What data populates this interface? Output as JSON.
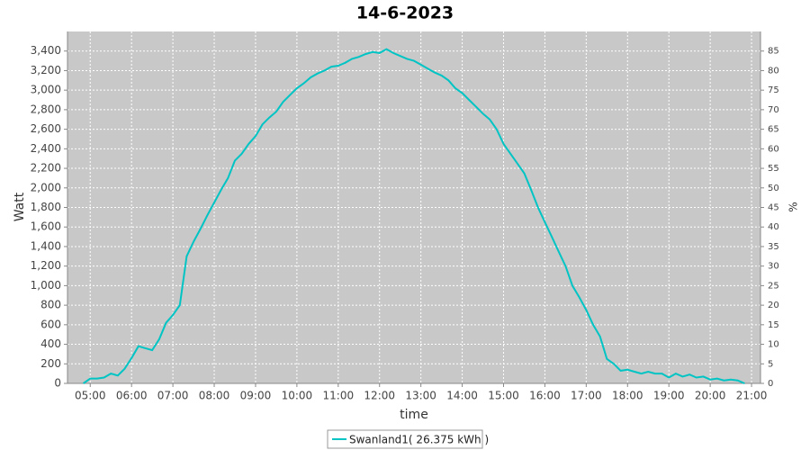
{
  "chart_data": {
    "type": "line",
    "title": "14-6-2023",
    "x_label": "time",
    "y_label": "Watt",
    "y2_label": "%",
    "series": [
      {
        "name": "Swanland1( 26.375 kWh )",
        "color": "#00c4c4",
        "x": [
          "04:50",
          "05:00",
          "05:10",
          "05:20",
          "05:30",
          "05:40",
          "05:50",
          "06:00",
          "06:10",
          "06:20",
          "06:30",
          "06:40",
          "06:50",
          "07:00",
          "07:10",
          "07:20",
          "07:30",
          "07:40",
          "07:50",
          "08:00",
          "08:10",
          "08:20",
          "08:30",
          "08:40",
          "08:50",
          "09:00",
          "09:10",
          "09:20",
          "09:30",
          "09:40",
          "09:50",
          "10:00",
          "10:10",
          "10:20",
          "10:30",
          "10:40",
          "10:50",
          "11:00",
          "11:10",
          "11:20",
          "11:30",
          "11:40",
          "11:50",
          "12:00",
          "12:10",
          "12:20",
          "12:30",
          "12:40",
          "12:50",
          "13:00",
          "13:10",
          "13:20",
          "13:30",
          "13:40",
          "13:50",
          "14:00",
          "14:10",
          "14:20",
          "14:30",
          "14:40",
          "14:50",
          "15:00",
          "15:10",
          "15:20",
          "15:30",
          "15:40",
          "15:50",
          "16:00",
          "16:10",
          "16:20",
          "16:30",
          "16:40",
          "16:50",
          "17:00",
          "17:10",
          "17:20",
          "17:30",
          "17:40",
          "17:50",
          "18:00",
          "18:10",
          "18:20",
          "18:30",
          "18:40",
          "18:50",
          "19:00",
          "19:10",
          "19:20",
          "19:30",
          "19:40",
          "19:50",
          "20:00",
          "20:10",
          "20:20",
          "20:30",
          "20:40",
          "20:50"
        ],
        "values": [
          0,
          50,
          50,
          60,
          100,
          80,
          150,
          260,
          380,
          360,
          340,
          450,
          620,
          700,
          800,
          1300,
          1450,
          1580,
          1720,
          1850,
          1980,
          2100,
          2280,
          2350,
          2450,
          2530,
          2650,
          2720,
          2780,
          2880,
          2950,
          3020,
          3070,
          3130,
          3170,
          3200,
          3240,
          3250,
          3280,
          3320,
          3340,
          3370,
          3390,
          3380,
          3420,
          3380,
          3350,
          3320,
          3300,
          3260,
          3220,
          3180,
          3150,
          3100,
          3020,
          2970,
          2900,
          2830,
          2760,
          2700,
          2600,
          2450,
          2350,
          2250,
          2150,
          1980,
          1800,
          1650,
          1500,
          1350,
          1200,
          1000,
          880,
          750,
          600,
          480,
          250,
          200,
          130,
          140,
          120,
          100,
          120,
          100,
          100,
          60,
          100,
          70,
          90,
          60,
          70,
          40,
          50,
          30,
          40,
          30,
          0
        ]
      }
    ],
    "xlim": [
      "04:27",
      "21:13"
    ],
    "xticks": [
      "05:00",
      "06:00",
      "07:00",
      "08:00",
      "09:00",
      "10:00",
      "11:00",
      "12:00",
      "13:00",
      "14:00",
      "15:00",
      "16:00",
      "17:00",
      "18:00",
      "19:00",
      "20:00",
      "21:00"
    ],
    "ylim": [
      0,
      3600
    ],
    "yticks": [
      0,
      200,
      400,
      600,
      800,
      {
        "value": 1000,
        "label": "1,000"
      },
      {
        "value": 1200,
        "label": "1,200"
      },
      {
        "value": 1400,
        "label": "1,400"
      },
      {
        "value": 1600,
        "label": "1,600"
      },
      {
        "value": 1800,
        "label": "1,800"
      },
      {
        "value": 2000,
        "label": "2,000"
      },
      {
        "value": 2200,
        "label": "2,200"
      },
      {
        "value": 2400,
        "label": "2,400"
      },
      {
        "value": 2600,
        "label": "2,600"
      },
      {
        "value": 2800,
        "label": "2,800"
      },
      {
        "value": 3000,
        "label": "3,000"
      },
      {
        "value": 3200,
        "label": "3,200"
      },
      {
        "value": 3400,
        "label": "3,400"
      }
    ],
    "y2lim": [
      0,
      90
    ],
    "y2ticks": [
      0,
      5,
      10,
      15,
      20,
      25,
      30,
      35,
      40,
      45,
      50,
      55,
      60,
      65,
      70,
      75,
      80,
      85
    ],
    "grid": true,
    "legend": "bottom"
  }
}
